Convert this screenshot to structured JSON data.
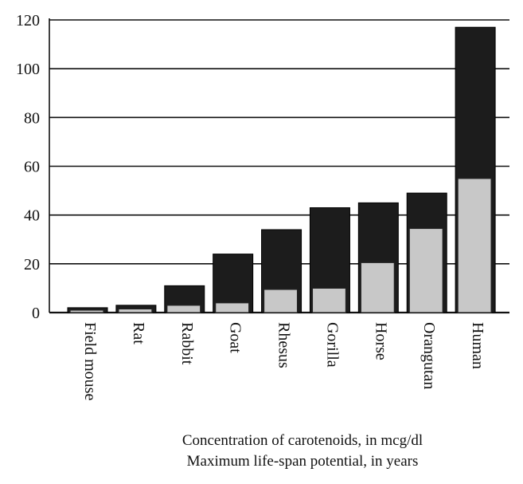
{
  "chart_data": {
    "type": "bar",
    "categories": [
      "Field mouse",
      "Rat",
      "Rabbit",
      "Goat",
      "Rhesus",
      "Gorilla",
      "Horse",
      "Orangutan",
      "Human"
    ],
    "series": [
      {
        "name": "Maximum life-span potential, in years",
        "values": [
          2,
          3,
          11,
          24,
          34,
          43,
          45,
          49,
          117
        ]
      },
      {
        "name": "Concentration of carotenoids, in mcg/dl",
        "values": [
          1,
          1.5,
          3,
          4,
          9.5,
          10,
          20.5,
          34.5,
          55
        ]
      }
    ],
    "yticks": [
      "0",
      "20",
      "40",
      "60",
      "80",
      "100",
      "120"
    ],
    "ylim": [
      0,
      120
    ],
    "grid": true,
    "title": "",
    "xlabel": "",
    "ylabel": "",
    "colors": {
      "back": "#1c1c1c",
      "front": "#c8c8c8",
      "grid": "#111111"
    }
  },
  "captions": {
    "line1": "Concentration of carotenoids, in mcg/dl",
    "line2": "Maximum life-span potential, in years"
  }
}
